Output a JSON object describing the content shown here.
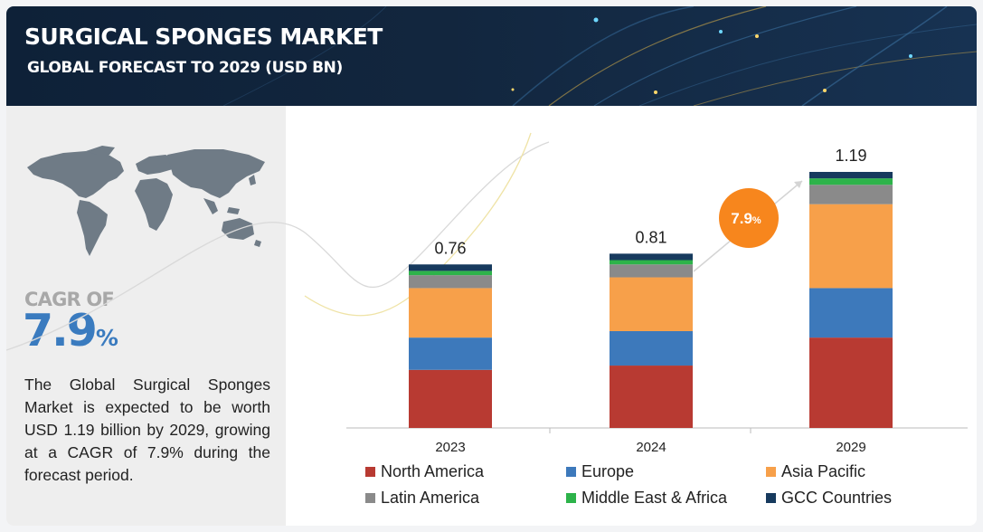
{
  "header": {
    "title": "SURGICAL SPONGES MARKET",
    "subtitle": "GLOBAL FORECAST TO 2029 (USD BN)"
  },
  "left_panel": {
    "map_icon": "world-map-icon",
    "cagr_label": "CAGR OF",
    "cagr_value": "7.9",
    "cagr_unit": "%",
    "description": "The Global Surgical Sponges Market is expected to be worth USD 1.19 billion by 2029, growing at a CAGR of 7.9% during the forecast period."
  },
  "chart_data": {
    "type": "bar",
    "stacked": true,
    "categories": [
      "2023",
      "2024",
      "2029"
    ],
    "totals": [
      0.76,
      0.81,
      1.19
    ],
    "total_labels": [
      "0.76",
      "0.81",
      "1.19"
    ],
    "series": [
      {
        "name": "North America",
        "color": "#b83a32",
        "values": [
          0.27,
          0.29,
          0.42
        ]
      },
      {
        "name": "Europe",
        "color": "#3d79bb",
        "values": [
          0.15,
          0.16,
          0.23
        ]
      },
      {
        "name": "Asia Pacific",
        "color": "#f7a04a",
        "values": [
          0.23,
          0.25,
          0.39
        ]
      },
      {
        "name": "Latin America",
        "color": "#8a8a8a",
        "values": [
          0.06,
          0.06,
          0.09
        ]
      },
      {
        "name": "Middle East & Africa",
        "color": "#2db34a",
        "values": [
          0.02,
          0.02,
          0.03
        ]
      },
      {
        "name": "GCC Countries",
        "color": "#173a5e",
        "values": [
          0.03,
          0.03,
          0.03
        ]
      }
    ],
    "cagr_badge": {
      "value": "7.9",
      "unit": "%",
      "color": "#f7861d"
    },
    "grid": false,
    "legend_position": "bottom"
  }
}
